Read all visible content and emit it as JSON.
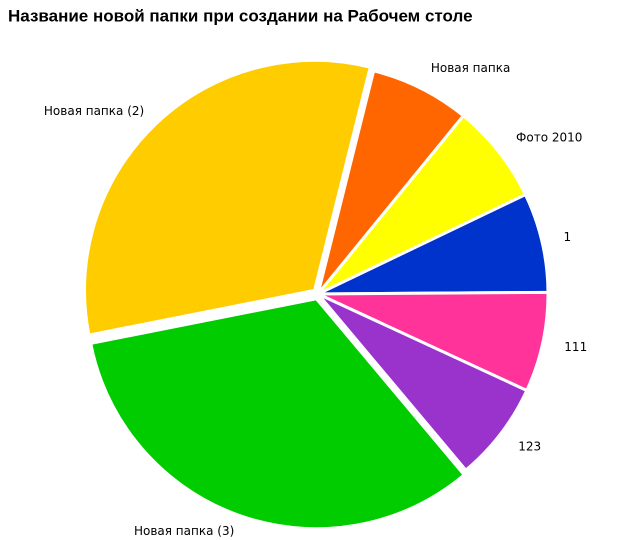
{
  "chart_data": {
    "type": "pie",
    "title": "Название новой папки при создании на Рабочем столе",
    "categories": [
      "Новая папка",
      "Фото 2010",
      "1",
      "111",
      "123",
      "Новая папка (3)",
      "Новая папка (2)"
    ],
    "values": [
      7,
      7,
      7,
      7,
      7,
      33,
      32
    ],
    "colors": [
      "#ff6600",
      "#ffff00",
      "#0033cc",
      "#ff3399",
      "#9933cc",
      "#00cc00",
      "#ffcc00"
    ]
  }
}
